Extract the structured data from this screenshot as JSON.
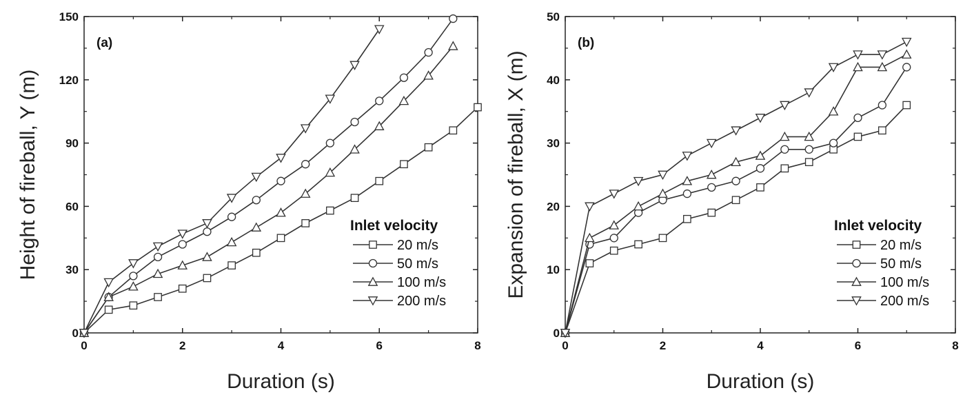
{
  "chart_data": [
    {
      "type": "line",
      "panel_label": "(a)",
      "xlabel": "Duration (s)",
      "ylabel": "Height of fireball,  Y (m)",
      "xlim": [
        0,
        8
      ],
      "ylim": [
        0,
        150
      ],
      "xticks": [
        "0",
        "2",
        "4",
        "6",
        "8"
      ],
      "yticks": [
        "0",
        "30",
        "60",
        "90",
        "120",
        "150"
      ],
      "grid": false,
      "legend_title": "Inlet velocity",
      "legend_position": "bottom-right",
      "series": [
        {
          "name": "20 m/s",
          "marker": "square",
          "x": [
            0,
            0.5,
            1,
            1.5,
            2,
            2.5,
            3,
            3.5,
            4,
            4.5,
            5,
            5.5,
            6,
            6.5,
            7,
            7.5,
            8
          ],
          "y": [
            0,
            11,
            13,
            17,
            21,
            26,
            32,
            38,
            45,
            52,
            58,
            64,
            72,
            80,
            88,
            96,
            107
          ]
        },
        {
          "name": "50 m/s",
          "marker": "circle",
          "x": [
            0,
            0.5,
            1,
            1.5,
            2,
            2.5,
            3,
            3.5,
            4,
            4.5,
            5,
            5.5,
            6,
            6.5,
            7,
            7.5
          ],
          "y": [
            0,
            17,
            27,
            36,
            42,
            48,
            55,
            63,
            72,
            80,
            90,
            100,
            110,
            121,
            133,
            149
          ]
        },
        {
          "name": "100 m/s",
          "marker": "triangle-up",
          "x": [
            0,
            0.5,
            1,
            1.5,
            2,
            2.5,
            3,
            3.5,
            4,
            4.5,
            5,
            5.5,
            6,
            6.5,
            7,
            7.5
          ],
          "y": [
            0,
            17,
            22,
            28,
            32,
            36,
            43,
            50,
            57,
            66,
            76,
            87,
            98,
            110,
            122,
            136
          ]
        },
        {
          "name": "200 m/s",
          "marker": "triangle-down",
          "x": [
            0,
            0.5,
            1,
            1.5,
            2,
            2.5,
            3,
            3.5,
            4,
            4.5,
            5,
            5.5,
            6
          ],
          "y": [
            0,
            24,
            33,
            41,
            47,
            52,
            64,
            74,
            83,
            97,
            111,
            127,
            144
          ]
        }
      ]
    },
    {
      "type": "line",
      "panel_label": "(b)",
      "xlabel": "Duration (s)",
      "ylabel": "Expansion of fireball,  X (m)",
      "xlim": [
        0,
        8
      ],
      "ylim": [
        0,
        50
      ],
      "xticks": [
        "0",
        "2",
        "4",
        "6",
        "8"
      ],
      "yticks": [
        "0",
        "10",
        "20",
        "30",
        "40",
        "50"
      ],
      "grid": false,
      "legend_title": "Inlet velocity",
      "legend_position": "bottom-right",
      "series": [
        {
          "name": "20 m/s",
          "marker": "square",
          "x": [
            0,
            0.5,
            1,
            1.5,
            2,
            2.5,
            3,
            3.5,
            4,
            4.5,
            5,
            5.5,
            6,
            6.5,
            7
          ],
          "y": [
            0,
            11,
            13,
            14,
            15,
            18,
            19,
            21,
            23,
            26,
            27,
            29,
            31,
            32,
            36
          ]
        },
        {
          "name": "50 m/s",
          "marker": "circle",
          "x": [
            0,
            0.5,
            1,
            1.5,
            2,
            2.5,
            3,
            3.5,
            4,
            4.5,
            5,
            5.5,
            6,
            6.5,
            7
          ],
          "y": [
            0,
            14,
            15,
            19,
            21,
            22,
            23,
            24,
            26,
            29,
            29,
            30,
            34,
            36,
            42
          ]
        },
        {
          "name": "100 m/s",
          "marker": "triangle-up",
          "x": [
            0,
            0.5,
            1,
            1.5,
            2,
            2.5,
            3,
            3.5,
            4,
            4.5,
            5,
            5.5,
            6,
            6.5,
            7
          ],
          "y": [
            0,
            15,
            17,
            20,
            22,
            24,
            25,
            27,
            28,
            31,
            31,
            35,
            42,
            42,
            44
          ]
        },
        {
          "name": "200 m/s",
          "marker": "triangle-down",
          "x": [
            0,
            0.5,
            1,
            1.5,
            2,
            2.5,
            3,
            3.5,
            4,
            4.5,
            5,
            5.5,
            6,
            6.5,
            7
          ],
          "y": [
            0,
            20,
            22,
            24,
            25,
            28,
            30,
            32,
            34,
            36,
            38,
            42,
            44,
            44,
            46
          ]
        }
      ]
    }
  ]
}
